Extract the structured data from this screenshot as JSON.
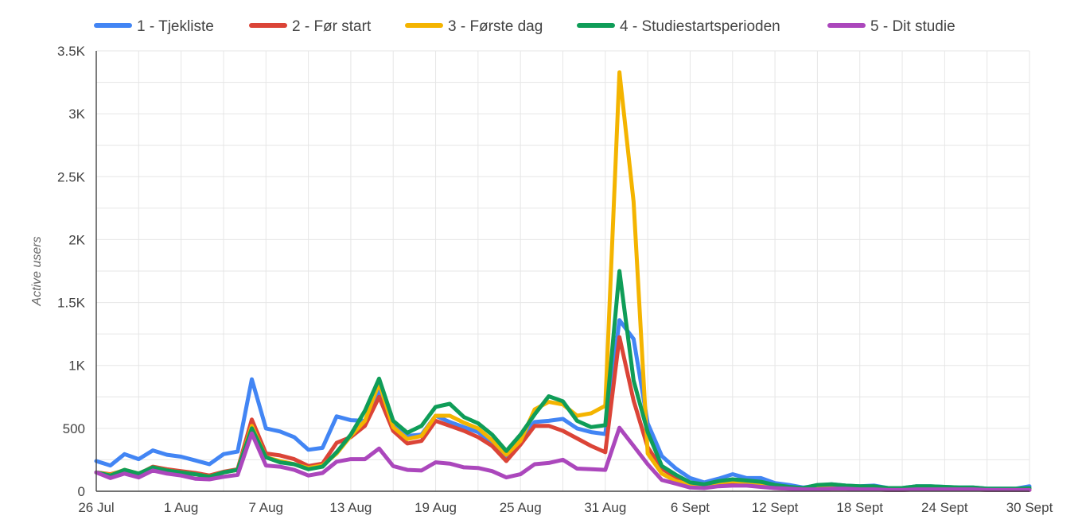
{
  "chart_data": {
    "type": "line",
    "ylabel": "Active users",
    "ylim": [
      0,
      3500
    ],
    "y_ticks": [
      {
        "value": 0,
        "label": "0"
      },
      {
        "value": 500,
        "label": "500"
      },
      {
        "value": 1000,
        "label": "1K"
      },
      {
        "value": 1500,
        "label": "1.5K"
      },
      {
        "value": 2000,
        "label": "2K"
      },
      {
        "value": 2500,
        "label": "2.5K"
      },
      {
        "value": 3000,
        "label": "3K"
      },
      {
        "value": 3500,
        "label": "3.5K"
      }
    ],
    "x_ticks": [
      {
        "date": "2023-07-26",
        "label": "26 Jul"
      },
      {
        "date": "2023-08-01",
        "label": "1 Aug"
      },
      {
        "date": "2023-08-07",
        "label": "7 Aug"
      },
      {
        "date": "2023-08-13",
        "label": "13 Aug"
      },
      {
        "date": "2023-08-19",
        "label": "19 Aug"
      },
      {
        "date": "2023-08-25",
        "label": "25 Aug"
      },
      {
        "date": "2023-08-31",
        "label": "31 Aug"
      },
      {
        "date": "2023-09-06",
        "label": "6 Sept"
      },
      {
        "date": "2023-09-12",
        "label": "12 Sept"
      },
      {
        "date": "2023-09-18",
        "label": "18 Sept"
      },
      {
        "date": "2023-09-24",
        "label": "24 Sept"
      },
      {
        "date": "2023-09-30",
        "label": "30 Sept"
      }
    ],
    "grid": true,
    "legend_position": "top",
    "x": [
      "2023-07-26",
      "2023-07-27",
      "2023-07-28",
      "2023-07-29",
      "2023-07-30",
      "2023-07-31",
      "2023-08-01",
      "2023-08-02",
      "2023-08-03",
      "2023-08-04",
      "2023-08-05",
      "2023-08-06",
      "2023-08-07",
      "2023-08-08",
      "2023-08-09",
      "2023-08-10",
      "2023-08-11",
      "2023-08-12",
      "2023-08-13",
      "2023-08-14",
      "2023-08-15",
      "2023-08-16",
      "2023-08-17",
      "2023-08-18",
      "2023-08-19",
      "2023-08-20",
      "2023-08-21",
      "2023-08-22",
      "2023-08-23",
      "2023-08-24",
      "2023-08-25",
      "2023-08-26",
      "2023-08-27",
      "2023-08-28",
      "2023-08-29",
      "2023-08-30",
      "2023-08-31",
      "2023-09-01",
      "2023-09-02",
      "2023-09-03",
      "2023-09-04",
      "2023-09-05",
      "2023-09-06",
      "2023-09-07",
      "2023-09-08",
      "2023-09-09",
      "2023-09-10",
      "2023-09-11",
      "2023-09-12",
      "2023-09-13",
      "2023-09-14",
      "2023-09-15",
      "2023-09-16",
      "2023-09-17",
      "2023-09-18",
      "2023-09-19",
      "2023-09-20",
      "2023-09-21",
      "2023-09-22",
      "2023-09-23",
      "2023-09-24",
      "2023-09-25",
      "2023-09-26",
      "2023-09-27",
      "2023-09-28",
      "2023-09-29",
      "2023-09-30"
    ],
    "series": [
      {
        "name": "1 - Tjekliste",
        "color": "#4285f4",
        "values": [
          240,
          205,
          295,
          255,
          325,
          290,
          275,
          245,
          215,
          295,
          315,
          890,
          500,
          475,
          430,
          330,
          345,
          595,
          565,
          560,
          800,
          540,
          440,
          450,
          600,
          550,
          510,
          470,
          390,
          270,
          420,
          550,
          560,
          575,
          500,
          470,
          455,
          1360,
          1210,
          540,
          280,
          180,
          105,
          70,
          100,
          135,
          105,
          105,
          65,
          50,
          30,
          45,
          55,
          45,
          40,
          45,
          25,
          25,
          40,
          40,
          35,
          30,
          30,
          20,
          20,
          20,
          40
        ]
      },
      {
        "name": "2 - Før start",
        "color": "#db4437",
        "values": [
          150,
          135,
          165,
          135,
          195,
          175,
          160,
          145,
          125,
          155,
          175,
          570,
          300,
          285,
          255,
          200,
          220,
          385,
          430,
          520,
          750,
          480,
          380,
          400,
          560,
          520,
          480,
          430,
          360,
          240,
          370,
          520,
          520,
          480,
          420,
          360,
          310,
          1225,
          720,
          350,
          180,
          110,
          60,
          40,
          50,
          55,
          55,
          40,
          25,
          20,
          15,
          15,
          20,
          20,
          15,
          15,
          10,
          10,
          15,
          15,
          15,
          15,
          15,
          10,
          10,
          10,
          10
        ]
      },
      {
        "name": "3 - Første dag",
        "color": "#f4b400",
        "values": [
          150,
          130,
          170,
          140,
          190,
          165,
          150,
          135,
          115,
          150,
          170,
          520,
          270,
          240,
          215,
          185,
          205,
          300,
          440,
          560,
          860,
          510,
          415,
          440,
          600,
          600,
          545,
          500,
          405,
          290,
          400,
          650,
          710,
          690,
          600,
          620,
          680,
          3330,
          2300,
          300,
          140,
          80,
          50,
          45,
          70,
          80,
          70,
          60,
          40,
          25,
          20,
          35,
          40,
          35,
          30,
          30,
          20,
          20,
          30,
          30,
          25,
          25,
          25,
          15,
          15,
          15,
          20
        ]
      },
      {
        "name": "4 - Studiestartsperioden",
        "color": "#0f9d58",
        "values": [
          150,
          125,
          170,
          140,
          190,
          165,
          150,
          135,
          115,
          150,
          170,
          500,
          270,
          230,
          215,
          175,
          195,
          310,
          450,
          640,
          895,
          560,
          465,
          520,
          670,
          695,
          590,
          540,
          450,
          320,
          450,
          610,
          755,
          715,
          560,
          510,
          525,
          1750,
          880,
          470,
          200,
          130,
          70,
          55,
          80,
          95,
          85,
          75,
          50,
          35,
          25,
          50,
          55,
          45,
          40,
          40,
          25,
          25,
          40,
          40,
          35,
          30,
          30,
          20,
          20,
          20,
          25
        ]
      },
      {
        "name": "5 - Dit studie",
        "color": "#ab47bc",
        "values": [
          150,
          105,
          140,
          110,
          165,
          140,
          125,
          100,
          95,
          115,
          130,
          460,
          205,
          195,
          170,
          125,
          145,
          235,
          255,
          255,
          340,
          200,
          170,
          165,
          230,
          220,
          190,
          185,
          160,
          110,
          135,
          215,
          225,
          250,
          180,
          175,
          170,
          505,
          360,
          215,
          90,
          60,
          30,
          25,
          40,
          45,
          45,
          35,
          25,
          20,
          15,
          15,
          20,
          20,
          15,
          15,
          10,
          10,
          15,
          15,
          15,
          15,
          15,
          10,
          10,
          10,
          10
        ]
      }
    ]
  }
}
